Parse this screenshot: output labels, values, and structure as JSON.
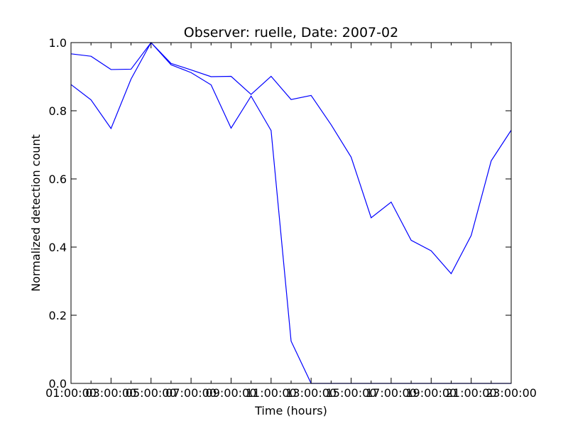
{
  "chart_data": {
    "type": "line",
    "title": "Observer: ruelle, Date: 2007-02",
    "xlabel": "Time (hours)",
    "ylabel": "Normalized detection count",
    "xlim": [
      1,
      23
    ],
    "ylim": [
      0.0,
      1.0
    ],
    "x_ticks": [
      1,
      2,
      3,
      4,
      5,
      6,
      7,
      8,
      9,
      10,
      11,
      12,
      13,
      14,
      15,
      16,
      17,
      18,
      19,
      20,
      21,
      22,
      23
    ],
    "x_tick_labels": [
      "01:00:00",
      "02:00:00",
      "03:00:00",
      "04:00:00",
      "05:00:00",
      "06:00:00",
      "07:00:00",
      "08:00:00",
      "09:00:00",
      "10:00:00",
      "11:00:00",
      "12:00:00",
      "13:00:00",
      "14:00:00",
      "15:00:00",
      "16:00:00",
      "17:00:00",
      "18:00:00",
      "19:00:00",
      "20:00:00",
      "21:00:00",
      "22:00:00",
      "23:00:00"
    ],
    "y_ticks": [
      0.0,
      0.2,
      0.4,
      0.6,
      0.8,
      1.0
    ],
    "y_tick_labels": [
      "0.0",
      "0.2",
      "0.4",
      "0.6",
      "0.8",
      "1.0"
    ],
    "grid": false,
    "series_color": "#0000ff",
    "series": [
      {
        "x": [
          1,
          2,
          3,
          4,
          5,
          6,
          7,
          8,
          9,
          10,
          11,
          12,
          13,
          14,
          15,
          16,
          17,
          18,
          19,
          20,
          21,
          22,
          23
        ],
        "values": [
          0.967,
          0.96,
          0.921,
          0.922,
          1.0,
          0.939,
          0.92,
          0.9,
          0.901,
          0.848,
          0.901,
          0.833,
          0.845,
          0.759,
          0.664,
          0.486,
          0.532,
          0.42,
          0.389,
          0.322,
          0.434,
          0.653,
          0.743
        ]
      },
      {
        "x": [
          1,
          2,
          3,
          4,
          5,
          6,
          7,
          8,
          9,
          10,
          11,
          12,
          13,
          14,
          15,
          16,
          17,
          18,
          19,
          20,
          21,
          22,
          23
        ],
        "values": [
          0.877,
          0.832,
          0.748,
          0.893,
          1.0,
          0.935,
          0.912,
          0.876,
          0.749,
          0.843,
          0.742,
          0.124,
          0.0,
          0.0,
          0.0,
          0.0,
          0.0,
          0.0,
          0.0,
          0.0,
          0.0,
          0.0,
          0.0
        ]
      }
    ]
  }
}
